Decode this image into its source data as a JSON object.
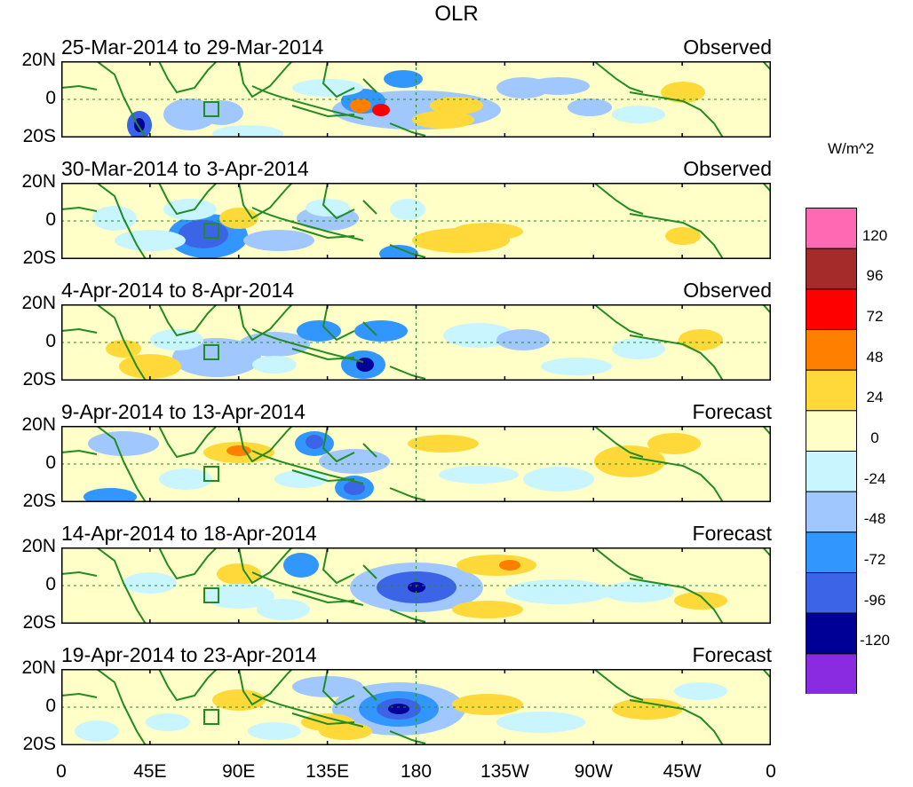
{
  "figure_title": "OLR",
  "units_label": "W/m^2",
  "panels": [
    {
      "dates": "25-Mar-2014 to 29-Mar-2014",
      "kind": "Observed"
    },
    {
      "dates": "30-Mar-2014 to 3-Apr-2014",
      "kind": "Observed"
    },
    {
      "dates": "4-Apr-2014 to 8-Apr-2014",
      "kind": "Observed"
    },
    {
      "dates": "9-Apr-2014 to 13-Apr-2014",
      "kind": "Forecast"
    },
    {
      "dates": "14-Apr-2014 to 18-Apr-2014",
      "kind": "Forecast"
    },
    {
      "dates": "19-Apr-2014 to 23-Apr-2014",
      "kind": "Forecast"
    }
  ],
  "lat_labels": [
    "20N",
    "0",
    "20S"
  ],
  "lon_labels": [
    "0",
    "45E",
    "90E",
    "135E",
    "180",
    "135W",
    "90W",
    "45W",
    "0"
  ],
  "colorbar": {
    "colors": [
      "#ff69b4",
      "#a52a2a",
      "#ff0000",
      "#ff7f00",
      "#ffd93a",
      "#ffffc8",
      "#c8f5ff",
      "#a0c8ff",
      "#3296ff",
      "#3c64e6",
      "#000096",
      "#8a2be2"
    ],
    "labels": [
      "120",
      "96",
      "72",
      "48",
      "24",
      "0",
      "-24",
      "-48",
      "-72",
      "-96",
      "-120"
    ]
  },
  "colors": {
    "coastline": "#228b22",
    "dashed_reference": "#228b22"
  }
}
